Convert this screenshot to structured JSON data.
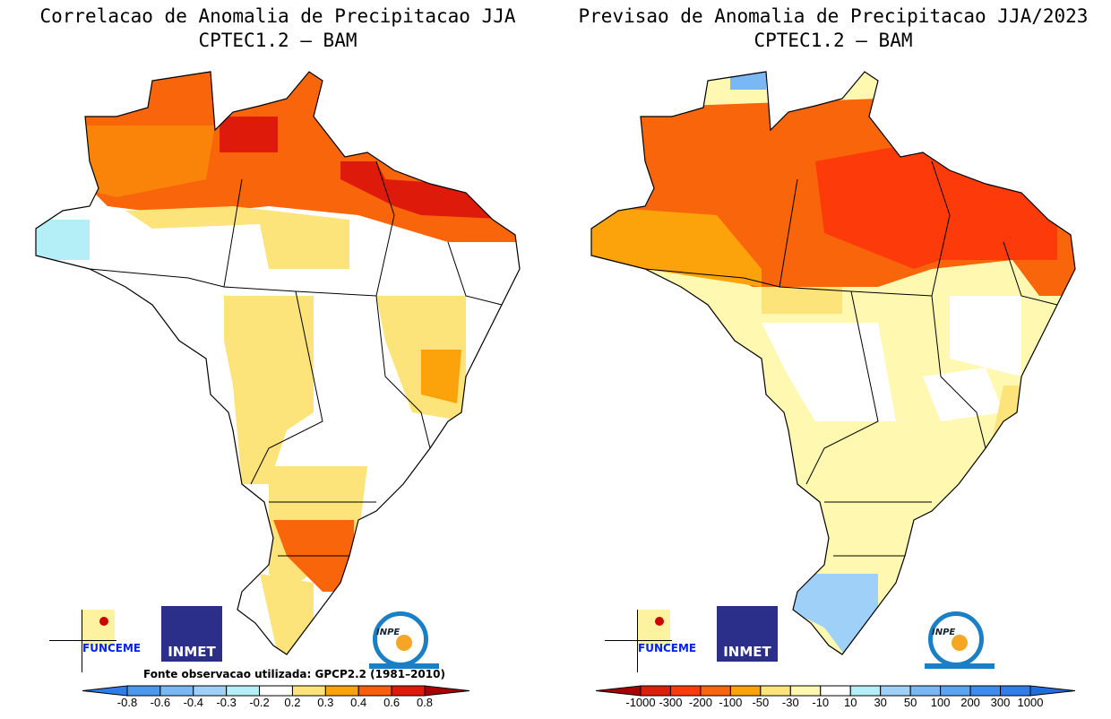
{
  "left_panel": {
    "title_line1": "Correlacao de Anomalia de Precipitacao JJA",
    "title_line2": "CPTEC1.2 – BAM",
    "source_note": "Fonte observacao utilizada: GPCP2.2 (1981–2010)",
    "colorbar": {
      "labels": [
        "-0.8",
        "-0.6",
        "-0.4",
        "-0.3",
        "-0.2",
        "0.2",
        "0.3",
        "0.4",
        "0.6",
        "0.8"
      ],
      "colors": [
        "#2f7de8",
        "#4a98f0",
        "#7ab8f5",
        "#9fd0f7",
        "#b4eef6",
        "#ffffff",
        "#fde47a",
        "#fca20a",
        "#f85e0b",
        "#de1b0b",
        "#a80000"
      ]
    }
  },
  "right_panel": {
    "title_line1": "Previsao de Anomalia de Precipitacao JJA/2023",
    "title_line2": "CPTEC1.2 – BAM",
    "colorbar": {
      "labels": [
        "-1000",
        "-300",
        "-200",
        "-100",
        "-50",
        "-30",
        "-10",
        "10",
        "30",
        "50",
        "100",
        "200",
        "300",
        "1000"
      ],
      "colors": [
        "#a80000",
        "#dc1f0b",
        "#fd3a0a",
        "#f8650b",
        "#fca20a",
        "#fde47a",
        "#fff8b0",
        "#ffffff",
        "#b4eef6",
        "#9fd0f7",
        "#7ab8f5",
        "#5aa5f2",
        "#3c8def",
        "#2f7de8",
        "#1f6ee0"
      ]
    }
  },
  "logos": {
    "funceme": "FUNCEME",
    "inmet": "INMET",
    "inpe": "INPE"
  }
}
